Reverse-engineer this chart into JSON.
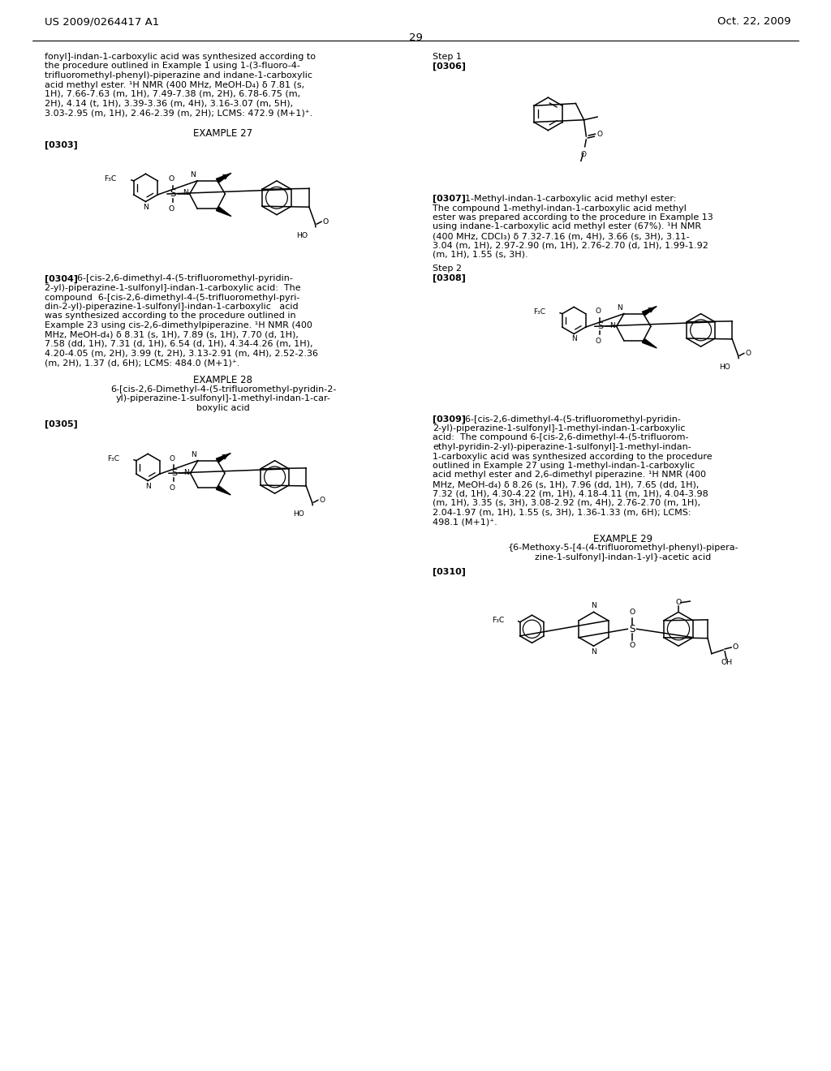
{
  "background_color": "#ffffff",
  "header_left": "US 2009/0264417 A1",
  "header_right": "Oct. 22, 2009",
  "page_number": "29",
  "body_fontsize": 8.0,
  "header_fontsize": 9.5,
  "bold_fontsize": 8.0,
  "example_fontsize": 8.5
}
